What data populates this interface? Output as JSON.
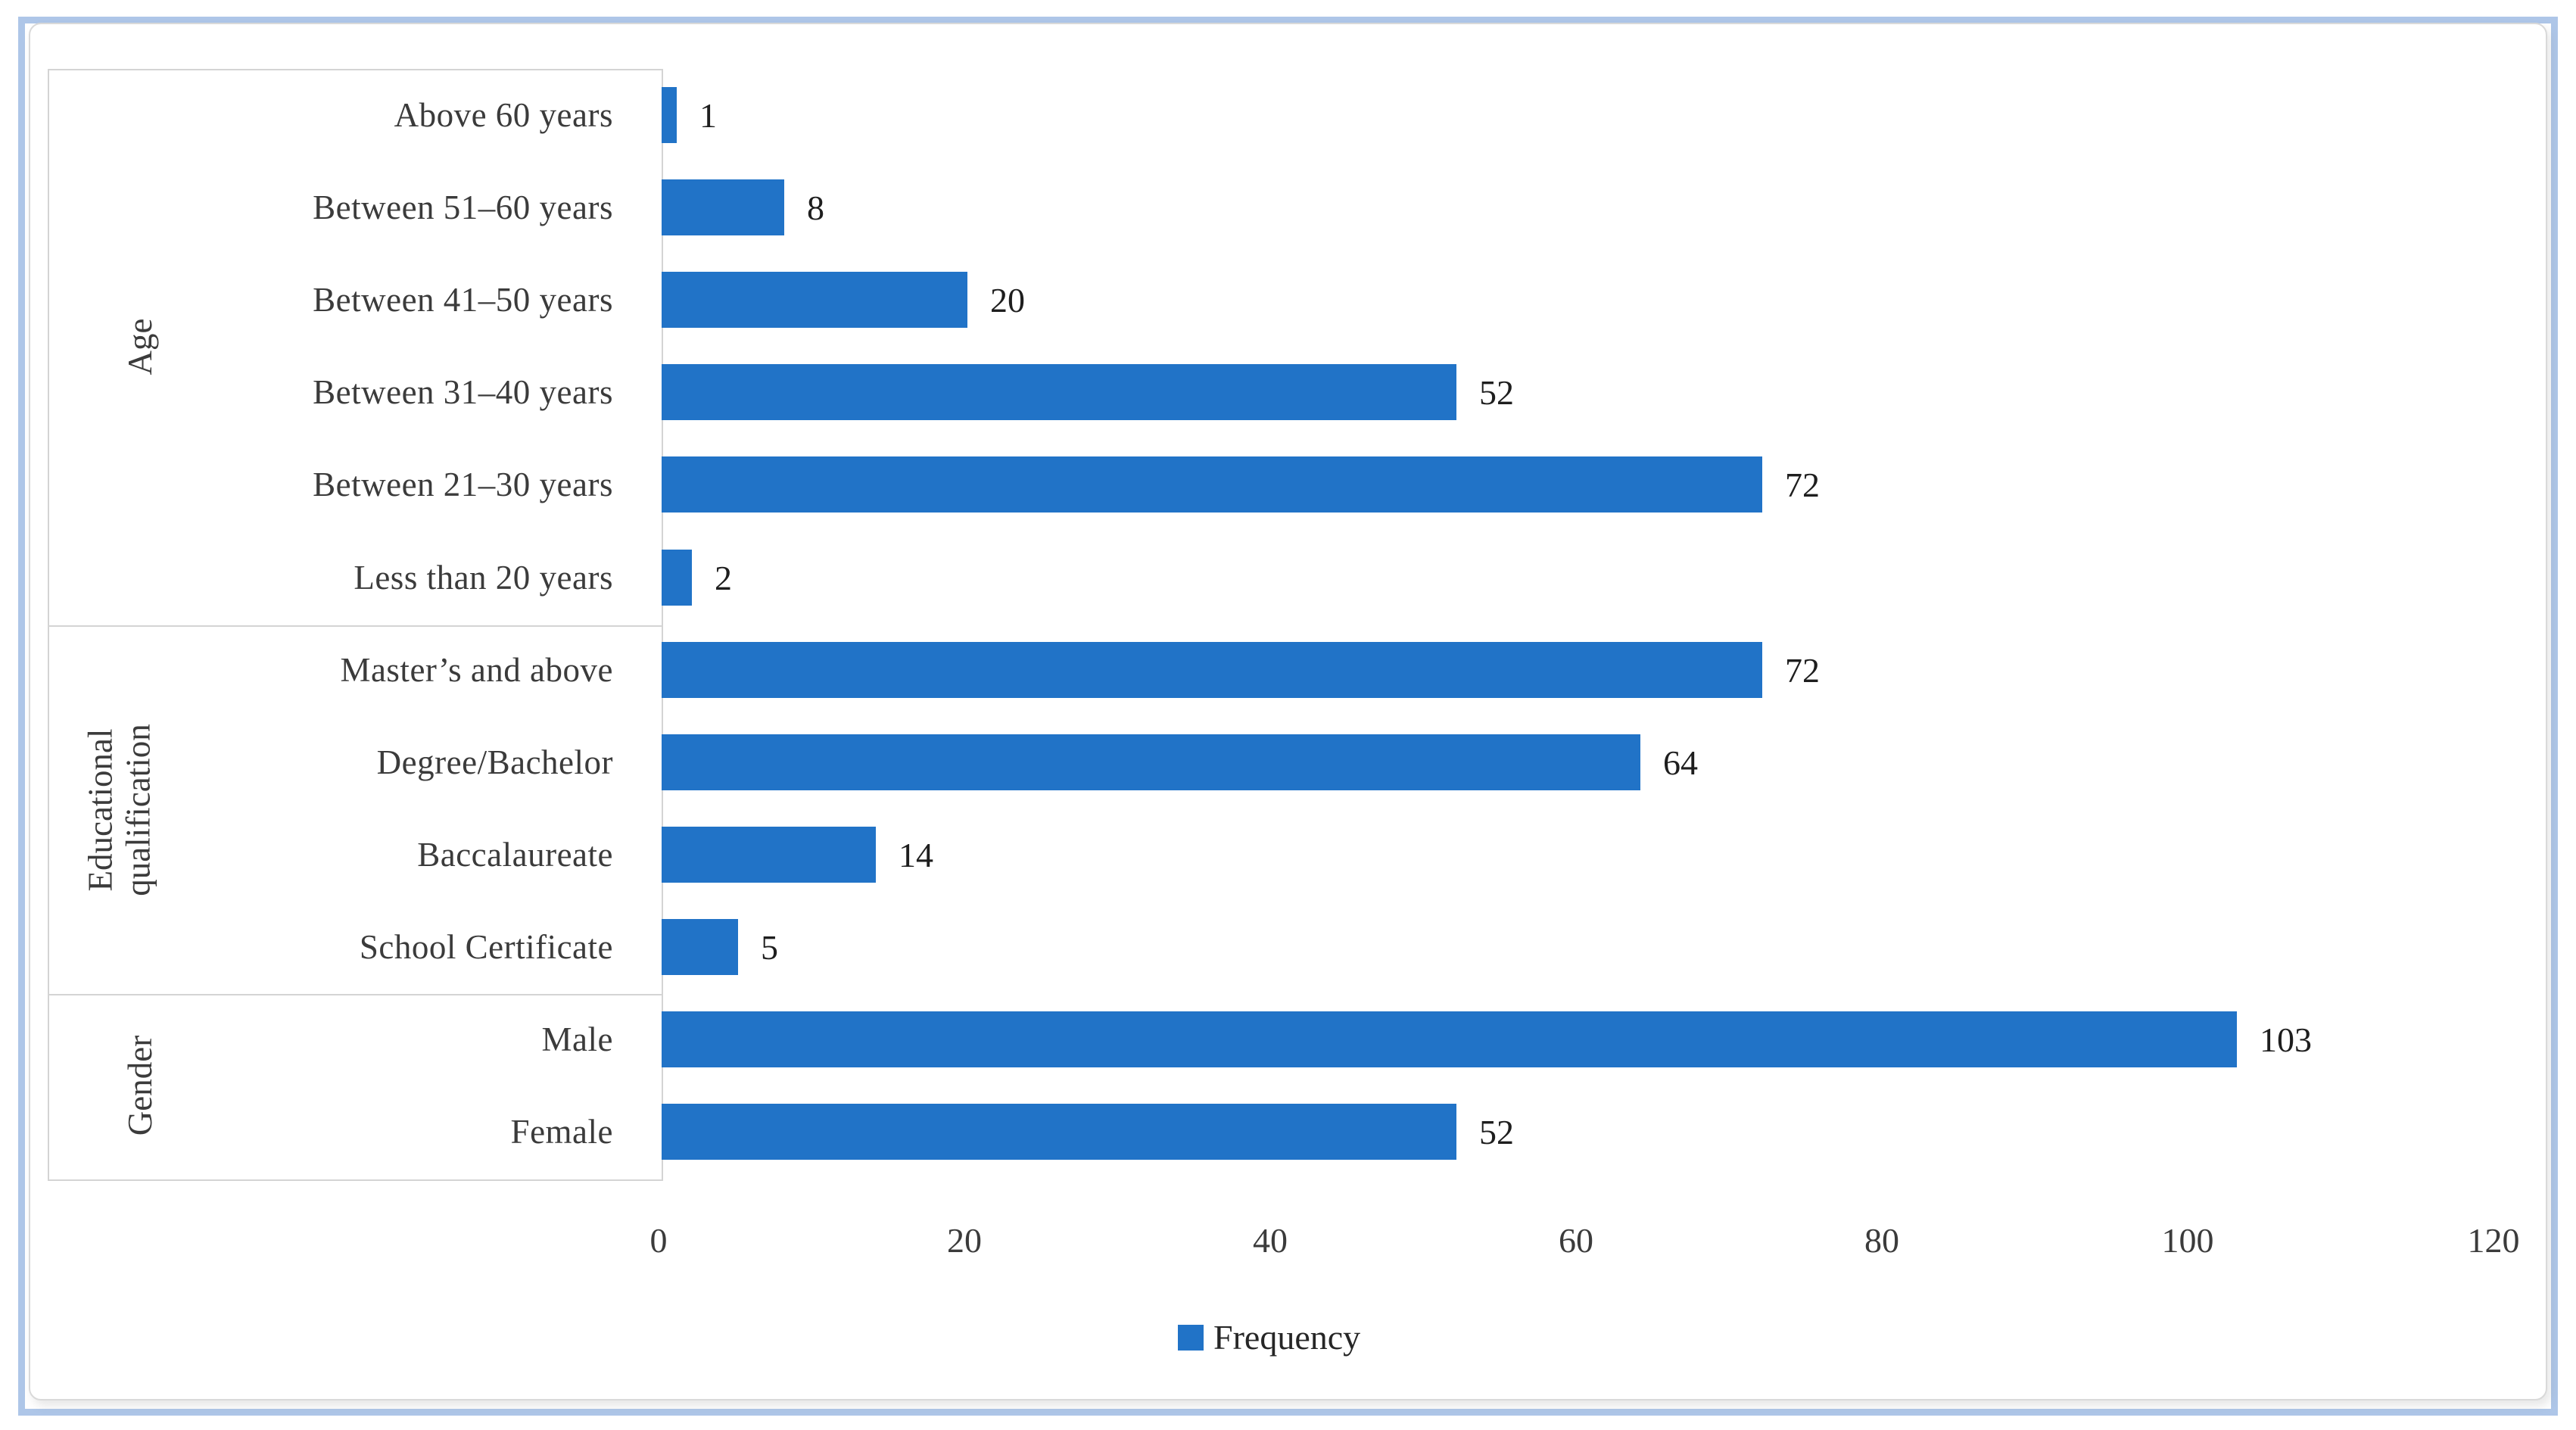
{
  "chart_data": {
    "type": "bar",
    "orientation": "horizontal",
    "title": "",
    "xlabel": "",
    "ylabel": "",
    "xlim": [
      0,
      120
    ],
    "x_ticks": [
      "0",
      "20",
      "40",
      "60",
      "80",
      "100",
      "120"
    ],
    "grid": false,
    "bar_color": "#2173c7",
    "legend": {
      "position": "bottom",
      "series_label": "Frequency"
    },
    "groups": [
      {
        "label": "Age",
        "categories": [
          "Above 60 years",
          "Between 51–60 years",
          "Between 41–50 years",
          "Between 31–40 years",
          "Between 21–30 years",
          "Less than 20 years"
        ],
        "values": [
          1,
          8,
          20,
          52,
          72,
          2
        ]
      },
      {
        "label": "Educational qualification",
        "categories": [
          "Master’s and above",
          "Degree/Bachelor",
          "Baccalaureate",
          "School Certificate"
        ],
        "values": [
          72,
          64,
          14,
          5
        ]
      },
      {
        "label": "Gender",
        "categories": [
          "Male",
          "Female"
        ],
        "values": [
          103,
          52
        ]
      }
    ],
    "rows": [
      {
        "group": "Age",
        "label": "Above 60 years",
        "value": 1
      },
      {
        "group": "Age",
        "label": "Between 51–60 years",
        "value": 8
      },
      {
        "group": "Age",
        "label": "Between 41–50 years",
        "value": 20
      },
      {
        "group": "Age",
        "label": "Between 31–40 years",
        "value": 52
      },
      {
        "group": "Age",
        "label": "Between 21–30 years",
        "value": 72
      },
      {
        "group": "Age",
        "label": "Less than 20 years",
        "value": 2
      },
      {
        "group": "Educational qualification",
        "label": "Master’s and above",
        "value": 72
      },
      {
        "group": "Educational qualification",
        "label": "Degree/Bachelor",
        "value": 64
      },
      {
        "group": "Educational qualification",
        "label": "Baccalaureate",
        "value": 14
      },
      {
        "group": "Educational qualification",
        "label": "School Certificate",
        "value": 5
      },
      {
        "group": "Gender",
        "label": "Male",
        "value": 103
      },
      {
        "group": "Gender",
        "label": "Female",
        "value": 52
      }
    ]
  }
}
